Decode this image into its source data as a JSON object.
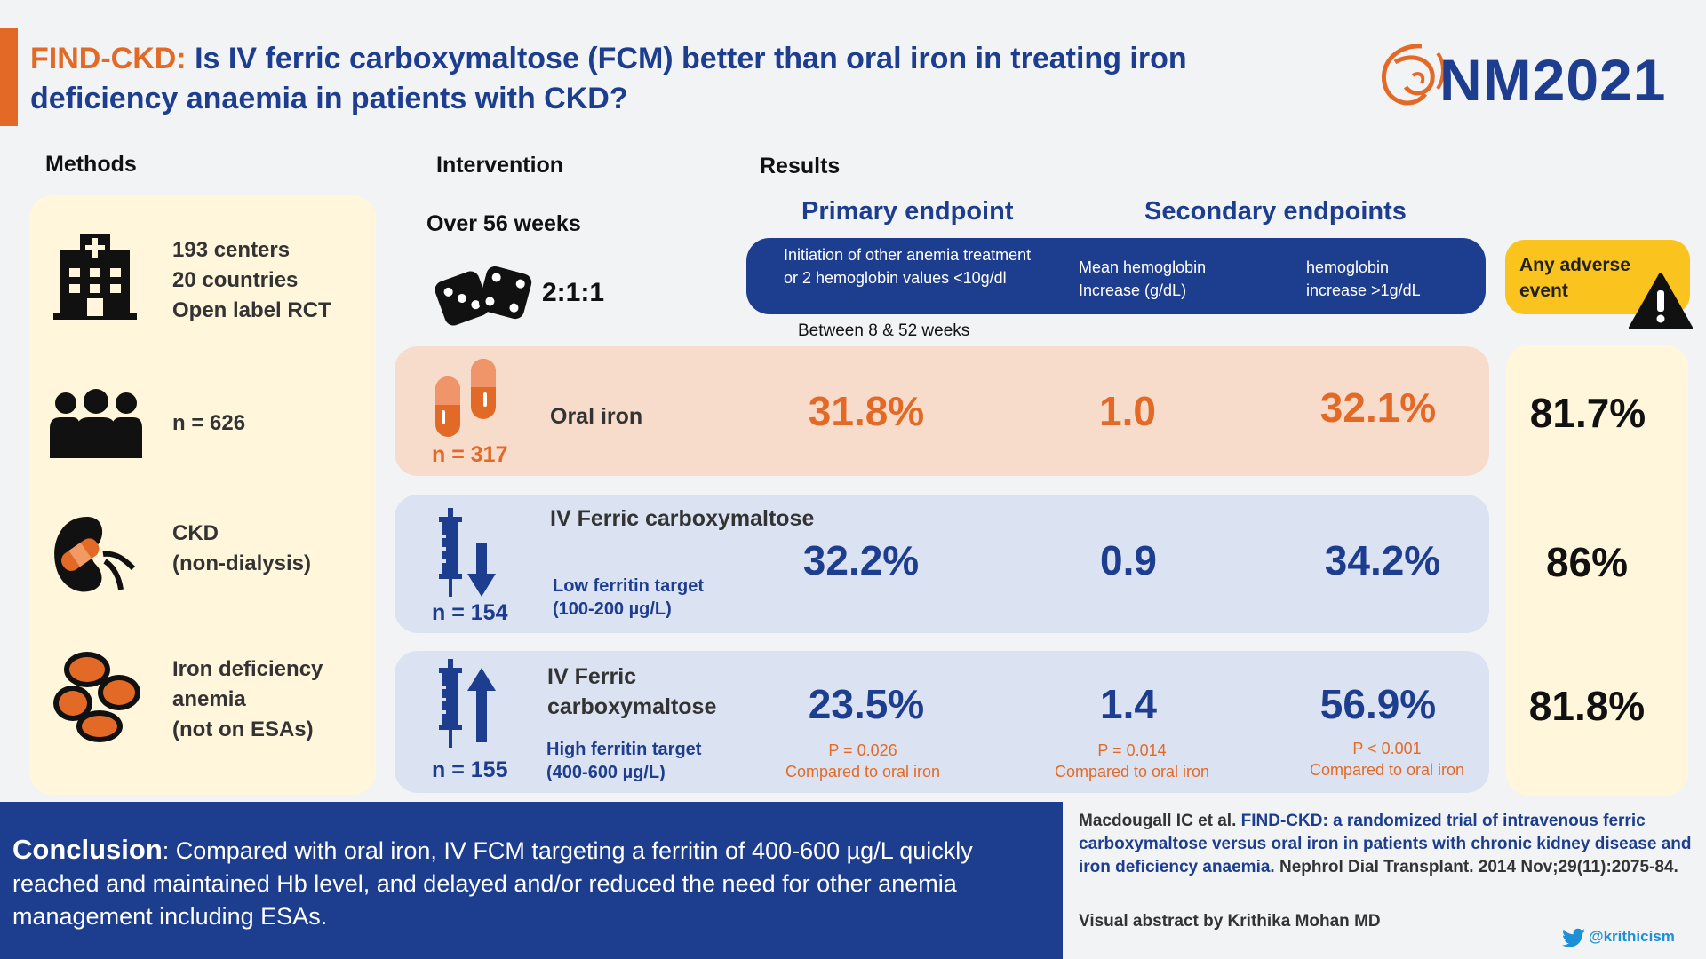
{
  "header": {
    "title_accent": "FIND-CKD:",
    "title_rest": " Is IV ferric carboxymaltose (FCM) better than oral iron in treating iron deficiency anaemia in patients with CKD?",
    "logo_text": "NM2021"
  },
  "sections": {
    "methods": "Methods",
    "intervention": "Intervention",
    "results": "Results"
  },
  "methods": {
    "design": [
      "193 centers",
      "20 countries",
      "Open label RCT"
    ],
    "n": "n = 626",
    "population": [
      "CKD",
      "(non-dialysis)"
    ],
    "condition": [
      "Iron deficiency",
      "anemia",
      "(not on ESAs)"
    ]
  },
  "intervention": {
    "duration": "Over 56 weeks",
    "ratio": "2:1:1"
  },
  "endpoints": {
    "primary_heading": "Primary endpoint",
    "secondary_heading": "Secondary endpoints",
    "primary_desc": [
      "Initiation of other anemia treatment",
      "or 2 hemoglobin values <10g/dl"
    ],
    "secondary_1": [
      "Mean hemoglobin",
      "Increase (g/dL)"
    ],
    "secondary_2": [
      "hemoglobin",
      "increase >1g/dL"
    ],
    "timeframe": "Between 8 & 52 weeks",
    "adverse": [
      "Any adverse",
      "event"
    ]
  },
  "arms": [
    {
      "name": "Oral iron",
      "n": "n = 317",
      "primary": "31.8%",
      "mean_hb": "1.0",
      "hb_increase": "32.1%",
      "adverse": "81.7%"
    },
    {
      "name": "IV Ferric carboxymaltose",
      "target": [
        "Low ferritin target",
        "(100-200 µg/L)"
      ],
      "n": "n = 154",
      "primary": "32.2%",
      "mean_hb": "0.9",
      "hb_increase": "34.2%",
      "adverse": "86%"
    },
    {
      "name": [
        "IV Ferric",
        "carboxymaltose"
      ],
      "target": [
        "High ferritin target",
        "(400-600 µg/L)"
      ],
      "n": "n = 155",
      "primary": "23.5%",
      "mean_hb": "1.4",
      "hb_increase": "56.9%",
      "adverse": "81.8%",
      "p_primary": "P = 0.026",
      "p_mean_hb": "P = 0.014",
      "p_hb_increase": "P < 0.001",
      "compared": "Compared to oral iron"
    }
  ],
  "conclusion": {
    "label": "Conclusion",
    "text": ": Compared with oral iron, IV FCM targeting a ferritin of 400-600 µg/L quickly reached and maintained Hb level, and delayed and/or reduced the need for other anemia management including ESAs."
  },
  "reference": {
    "authors": "Macdougall IC et al. ",
    "title": "FIND-CKD: a randomized trial of intravenous ferric carboxymaltose versus oral iron in patients with chronic kidney disease and iron deficiency anaemia.",
    "journal": " Nephrol Dial Transplant. 2014 Nov;29(11):2075-84.",
    "byline": "Visual abstract by Krithika Mohan MD",
    "twitter": "@krithicism"
  },
  "colors": {
    "navy": "#1d3d8f",
    "orange": "#e36a26",
    "cream": "#fff6dc",
    "peach": "#f8dccb",
    "lightblue": "#dbe3f2",
    "yellow": "#fbc31d"
  }
}
